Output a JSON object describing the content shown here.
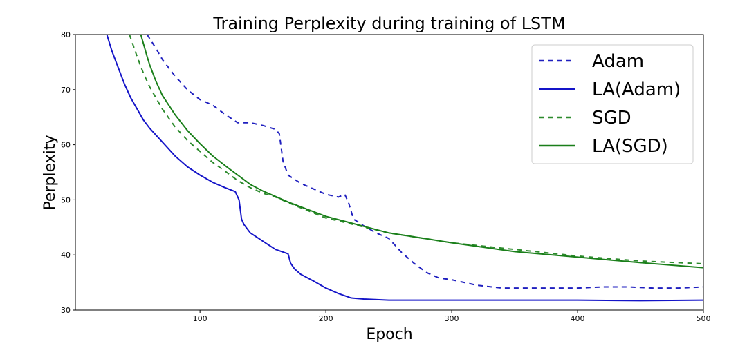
{
  "chart_data": {
    "type": "line",
    "title": "Training Perplexity during training of LSTM",
    "xlabel": "Epoch",
    "ylabel": "Perplexity",
    "xlim": [
      1,
      500
    ],
    "ylim": [
      30,
      80
    ],
    "xticks": [
      100,
      200,
      300,
      400,
      500
    ],
    "yticks": [
      30,
      40,
      50,
      60,
      70,
      80
    ],
    "grid": false,
    "legend": "top-right",
    "series": [
      {
        "name": "Adam",
        "color": "#1f1fbf",
        "style": "dashed",
        "x": [
          58,
          65,
          70,
          80,
          90,
          100,
          110,
          120,
          130,
          140,
          150,
          160,
          163,
          166,
          170,
          180,
          190,
          200,
          210,
          215,
          218,
          222,
          230,
          240,
          250,
          260,
          270,
          280,
          290,
          300,
          320,
          340,
          360,
          380,
          400,
          420,
          440,
          460,
          480,
          500
        ],
        "y": [
          80,
          77.5,
          75.5,
          72.5,
          70,
          68.2,
          67.2,
          65.5,
          64,
          64,
          63.5,
          62.8,
          62,
          57,
          54.5,
          53,
          52,
          51,
          50.5,
          51,
          49.5,
          46.5,
          45.3,
          44,
          43,
          40.5,
          38.5,
          36.8,
          35.8,
          35.5,
          34.5,
          34,
          34,
          34,
          34,
          34.2,
          34.2,
          34,
          34,
          34.2
        ]
      },
      {
        "name": "LA(Adam)",
        "color": "#1414c8",
        "style": "solid",
        "x": [
          26,
          30,
          35,
          40,
          45,
          50,
          55,
          60,
          70,
          80,
          90,
          100,
          110,
          120,
          128,
          131,
          133,
          135,
          140,
          150,
          160,
          170,
          172,
          175,
          180,
          190,
          200,
          210,
          220,
          230,
          250,
          300,
          350,
          400,
          450,
          500
        ],
        "y": [
          80,
          77,
          74,
          71,
          68.5,
          66.5,
          64.5,
          63,
          60.5,
          58,
          56,
          54.5,
          53.2,
          52.2,
          51.5,
          50,
          46.5,
          45.5,
          44,
          42.5,
          41,
          40.2,
          38.5,
          37.5,
          36.5,
          35.3,
          34,
          33,
          32.2,
          32,
          31.8,
          31.8,
          31.8,
          31.8,
          31.7,
          31.8
        ]
      },
      {
        "name": "SGD",
        "color": "#2c8a2c",
        "style": "dashed",
        "x": [
          44,
          50,
          55,
          60,
          70,
          80,
          90,
          100,
          110,
          120,
          130,
          140,
          150,
          160,
          170,
          200,
          250,
          300,
          350,
          400,
          450,
          500
        ],
        "y": [
          80,
          76,
          73,
          70.5,
          66.5,
          63.3,
          60.8,
          58.8,
          56.8,
          55.2,
          53.5,
          52.2,
          51.2,
          50.5,
          49.5,
          46.7,
          44,
          42.2,
          41,
          39.8,
          38.9,
          38.4
        ]
      },
      {
        "name": "LA(SGD)",
        "color": "#1a7f1a",
        "style": "solid",
        "x": [
          53,
          58,
          60,
          65,
          70,
          80,
          90,
          100,
          110,
          120,
          130,
          140,
          150,
          160,
          170,
          200,
          250,
          300,
          350,
          400,
          450,
          500
        ],
        "y": [
          80,
          76,
          74.5,
          71.5,
          69,
          65.5,
          62.6,
          60.2,
          58,
          56.2,
          54.5,
          52.8,
          51.6,
          50.6,
          49.6,
          47,
          44,
          42.2,
          40.6,
          39.6,
          38.6,
          37.7
        ]
      }
    ]
  }
}
